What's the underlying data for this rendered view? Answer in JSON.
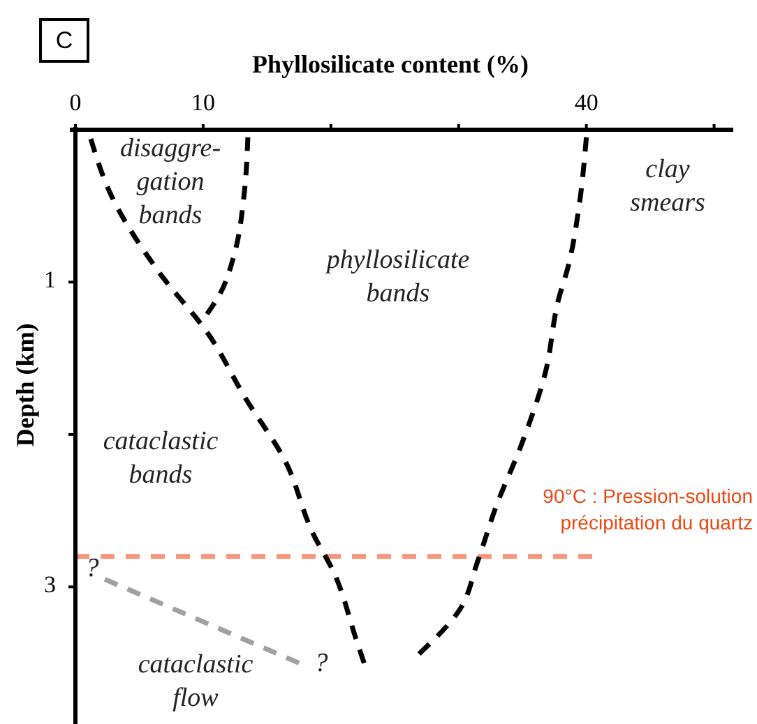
{
  "chart_data": {
    "type": "line",
    "title": "C",
    "xlabel": "Phyllosilicate content (%)",
    "ylabel": "Depth (km)",
    "xlim": [
      0,
      51.5
    ],
    "xticks": [
      0,
      10,
      {
        "value": 20,
        "label": null
      },
      {
        "value": 30,
        "label": null
      },
      40,
      {
        "value": 50,
        "label": null
      }
    ],
    "ylim": [
      3.9,
      0
    ],
    "yticks": [
      1,
      {
        "value": 2,
        "label": null
      },
      3
    ],
    "grid": false,
    "line_style": "dashed",
    "series": [
      {
        "color": "#000000",
        "x": [
          1.2,
          2.8,
          6.5,
          10.4,
          13.3,
          16.4,
          18.6,
          20.2,
          22,
          22.6
        ],
        "values": [
          0.06,
          0.43,
          0.93,
          1.34,
          1.76,
          2.17,
          2.65,
          2.9,
          3.35,
          3.5
        ]
      },
      {
        "color": "#000000",
        "x": [
          13.5,
          13.2,
          12.4,
          11.3,
          10.3
        ],
        "values": [
          0.05,
          0.43,
          0.83,
          1.08,
          1.21
        ]
      },
      {
        "color": "#000000",
        "x": [
          40,
          39.4,
          38.6,
          37.8,
          36.8,
          34.9,
          32.9,
          31.5,
          30,
          26.9
        ],
        "values": [
          0.05,
          0.52,
          0.89,
          1.12,
          1.59,
          2.07,
          2.48,
          2.83,
          3.16,
          3.44
        ]
      },
      {
        "color": "#a0a0a0",
        "x": [
          2.3,
          17.5
        ],
        "values": [
          2.95,
          3.5
        ]
      }
    ],
    "ref_lines": [
      {
        "axis": "y",
        "value": 2.8,
        "label": "90°C : Pression-solution\nprécipitation du quartz",
        "color": "#f4977a",
        "line_style": "dashed"
      }
    ],
    "annotations": [
      "disaggre-\ngation\nbands",
      "clay\nsmears",
      "phyllosilicate\nbands",
      "cataclastic\nbands",
      "cataclastic\nflow",
      "?",
      "?"
    ]
  }
}
